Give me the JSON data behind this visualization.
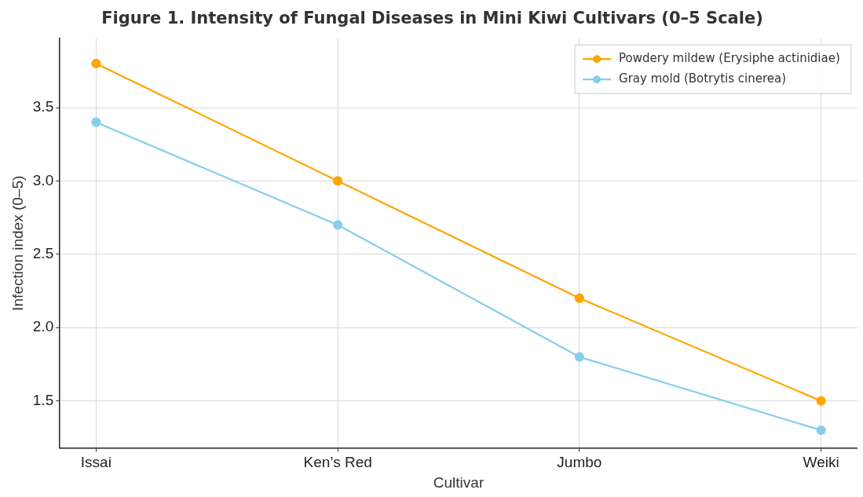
{
  "chart_data": {
    "type": "line",
    "title": "Figure 1. Intensity of Fungal Diseases in Mini Kiwi Cultivars (0–5 Scale)",
    "xlabel": "Cultivar",
    "ylabel": "Infection index (0–5)",
    "categories": [
      "Issai",
      "Ken’s Red",
      "Jumbo",
      "Weiki"
    ],
    "series": [
      {
        "name": "Powdery mildew (Erysiphe actinidiae)",
        "color": "#ffa500",
        "values": [
          3.8,
          3.0,
          2.2,
          1.5
        ]
      },
      {
        "name": "Gray mold (Botrytis cinerea)",
        "color": "#87ceeb",
        "values": [
          3.4,
          2.7,
          1.8,
          1.3
        ]
      }
    ],
    "ylim": [
      1.18,
      3.97
    ],
    "yticks": [
      {
        "value": 1.5,
        "label": "1.5"
      },
      {
        "value": 2.0,
        "label": "2.0"
      },
      {
        "value": 2.5,
        "label": "2.5"
      },
      {
        "value": 3.0,
        "label": "3.0"
      },
      {
        "value": 3.5,
        "label": "3.5"
      }
    ],
    "grid": true,
    "legend": "top right",
    "marker": "circle",
    "line_style": "solid"
  }
}
